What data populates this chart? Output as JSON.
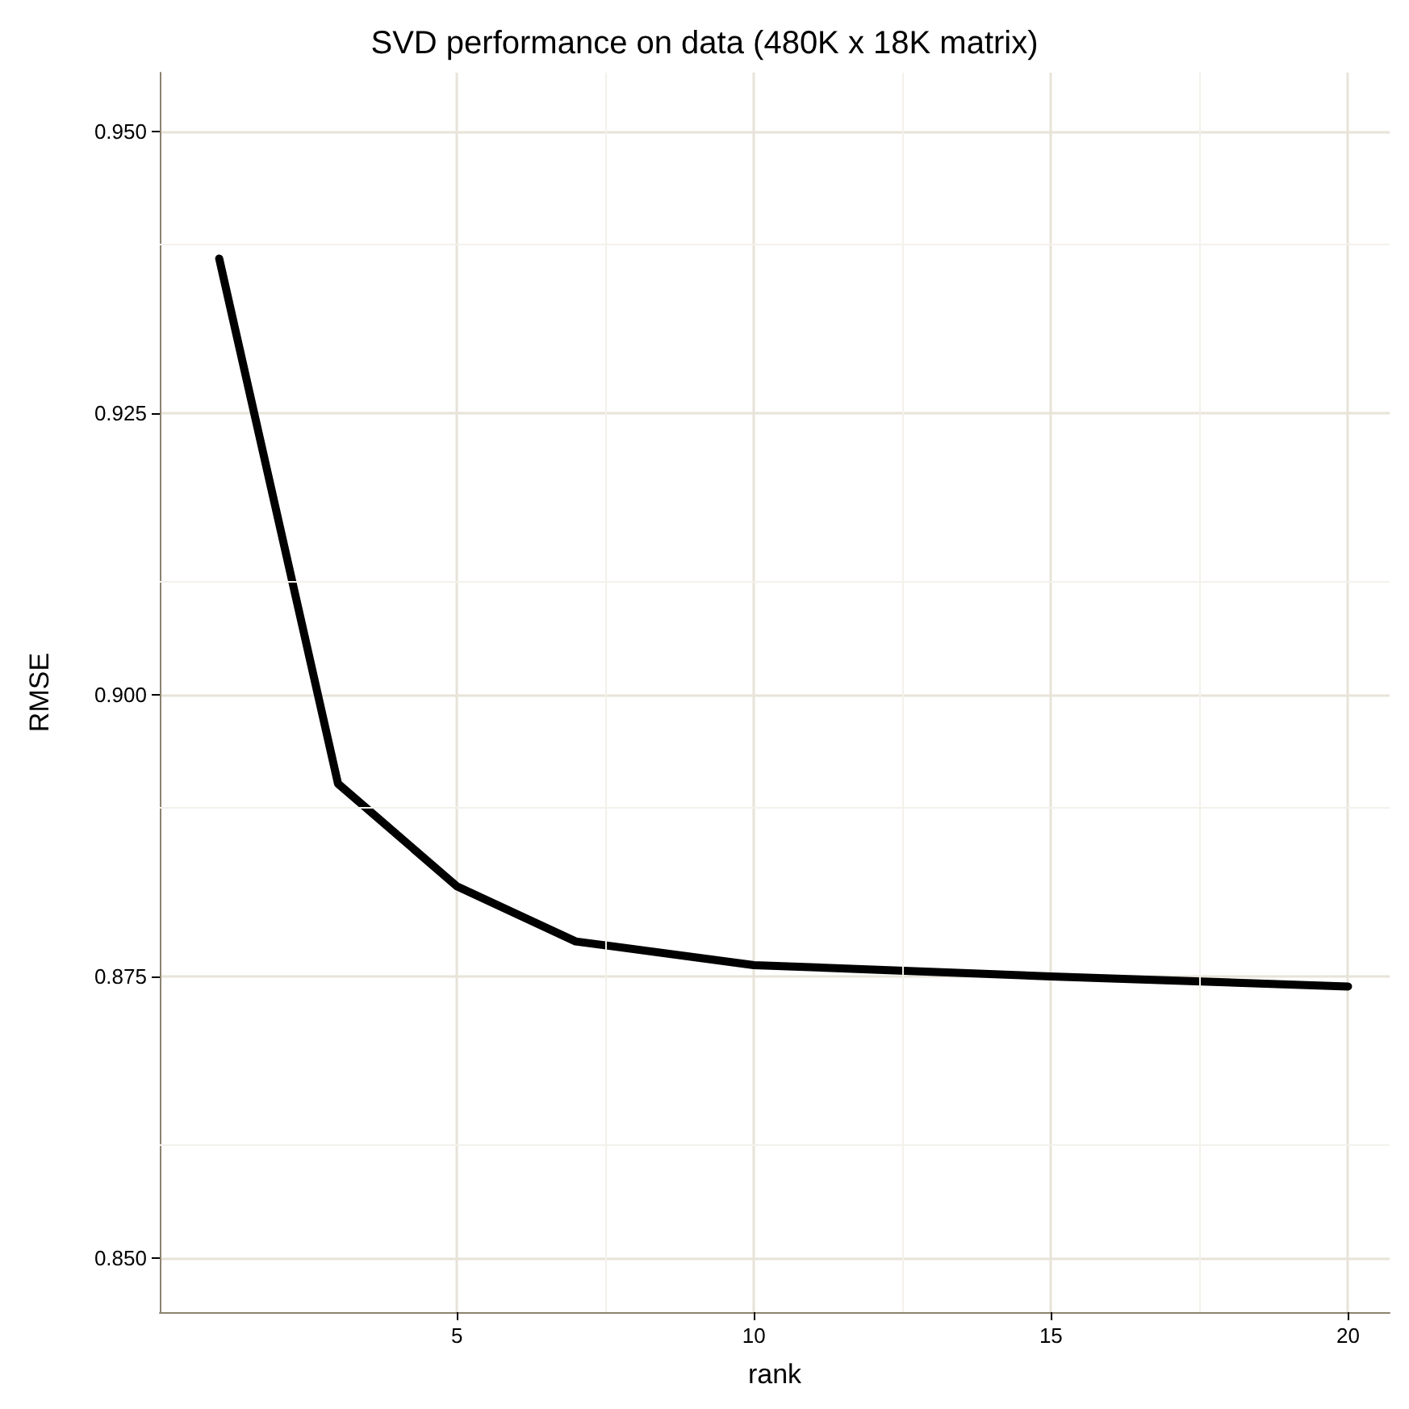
{
  "chart_data": {
    "type": "line",
    "title": "SVD performance on data (480K x 18K matrix)",
    "xlabel": "rank",
    "ylabel": "RMSE",
    "x": [
      1,
      3,
      5,
      7,
      10,
      15,
      20
    ],
    "series": [
      {
        "color": "#000000",
        "values": [
          0.9387,
          0.8921,
          0.883,
          0.8781,
          0.876,
          0.875,
          0.8741
        ]
      }
    ],
    "xlim": [
      0,
      20.7
    ],
    "xticks": [
      5,
      10,
      15,
      20
    ],
    "ylim": [
      0.8452,
      0.9552
    ],
    "yticks": [
      {
        "value": 0.85,
        "label": "0.850"
      },
      {
        "value": 0.875,
        "label": "0.875"
      },
      {
        "value": 0.9,
        "label": "0.900"
      },
      {
        "value": 0.925,
        "label": "0.925"
      },
      {
        "value": 0.95,
        "label": "0.950"
      }
    ],
    "grid": true,
    "marker": "none",
    "line_style": "solid"
  }
}
